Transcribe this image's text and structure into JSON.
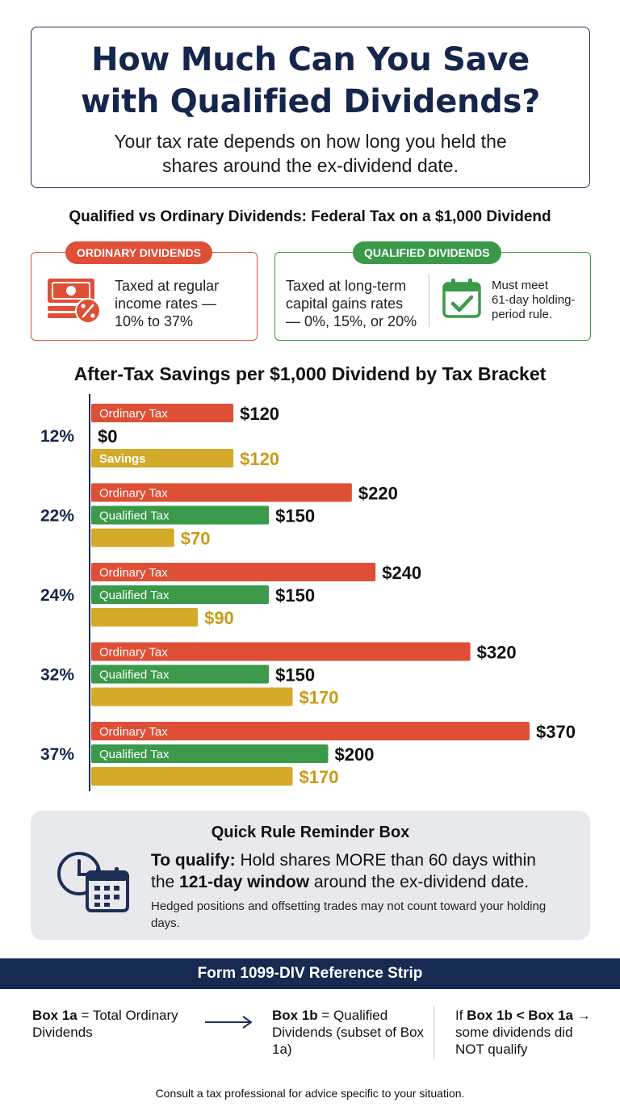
{
  "header": {
    "title_line1": "How Much Can You Save",
    "title_line2": "with Qualified Dividends?",
    "subtitle_line1": "Your tax rate depends on how long you held the",
    "subtitle_line2": "shares around the ex-dividend date."
  },
  "comparison": {
    "heading": "Qualified vs Ordinary Dividends: Federal Tax on a $1,000 Dividend",
    "ordinary": {
      "badge": "ORDINARY DIVIDENDS",
      "line1": "Taxed at regular",
      "line2": "income rates —",
      "line3": "10% to 37%",
      "icon": "money-percent-icon",
      "color": "#df4f36"
    },
    "qualified": {
      "badge": "QUALIFIED DIVIDENDS",
      "line1": "Taxed at long-term",
      "line2": "capital gains rates",
      "line3": "— 0%, 15%, or 20%",
      "side_line1": "Must meet",
      "side_line2": "61-day holding-",
      "side_line3": "period rule.",
      "icon": "calendar-check-icon",
      "color": "#3a9a4a"
    }
  },
  "chart_data": {
    "type": "bar",
    "orientation": "horizontal",
    "title": "After-Tax Savings per $1,000 Dividend by Tax Bracket",
    "categories": [
      "12%",
      "22%",
      "24%",
      "32%",
      "37%"
    ],
    "series": [
      {
        "name": "Ordinary Tax",
        "color": "#df4f36",
        "values": [
          120,
          220,
          240,
          320,
          370
        ],
        "labels": [
          "$120",
          "$220",
          "$240",
          "$320",
          "$370"
        ],
        "bar_text": [
          "Ordinary Tax",
          "Ordinary Tax",
          "Ordinary Tax",
          "Ordinary Tax",
          "Ordinary Tax"
        ]
      },
      {
        "name": "Qualified Tax",
        "color": "#3a9a4a",
        "values": [
          0,
          150,
          150,
          150,
          200
        ],
        "labels": [
          "$0",
          "$150",
          "$150",
          "$150",
          "$200"
        ],
        "bar_text": [
          "",
          "Qualified Tax",
          "Qualified Tax",
          "Qualified Tax",
          "Qualified Tax"
        ]
      },
      {
        "name": "Savings",
        "color": "#d4aa2b",
        "values": [
          120,
          70,
          90,
          170,
          170
        ],
        "labels": [
          "$120",
          "$70",
          "$90",
          "$170",
          "$170"
        ],
        "bar_text": [
          "Savings",
          "",
          "",
          "",
          ""
        ]
      }
    ],
    "xlim": [
      0,
      370
    ],
    "grid": false,
    "legend": "none"
  },
  "reminder": {
    "heading": "Quick Rule Reminder Box",
    "lead_bold": "To qualify:",
    "lead_text": " Hold shares MORE than 60 days within",
    "line2_pre": "the ",
    "line2_bold": "121-day window",
    "line2_post": " around the ex-dividend date.",
    "note": "Hedged positions and offsetting trades may not count toward your holding days.",
    "icon": "clock-calendar-icon"
  },
  "form_strip": {
    "title": "Form 1099-DIV Reference Strip",
    "col1_bold": "Box 1a",
    "col1_text": " = Total Ordinary Dividends",
    "col2_bold": "Box 1b",
    "col2_text": " = Qualified Dividends (subset of Box 1a)",
    "col3_pre": "If ",
    "col3_bold": "Box 1b < Box 1a →",
    "col3_text": " some dividends did NOT qualify",
    "arrow_icon": "arrow-right-icon"
  },
  "footer": "Consult a tax professional for advice specific to your situation."
}
